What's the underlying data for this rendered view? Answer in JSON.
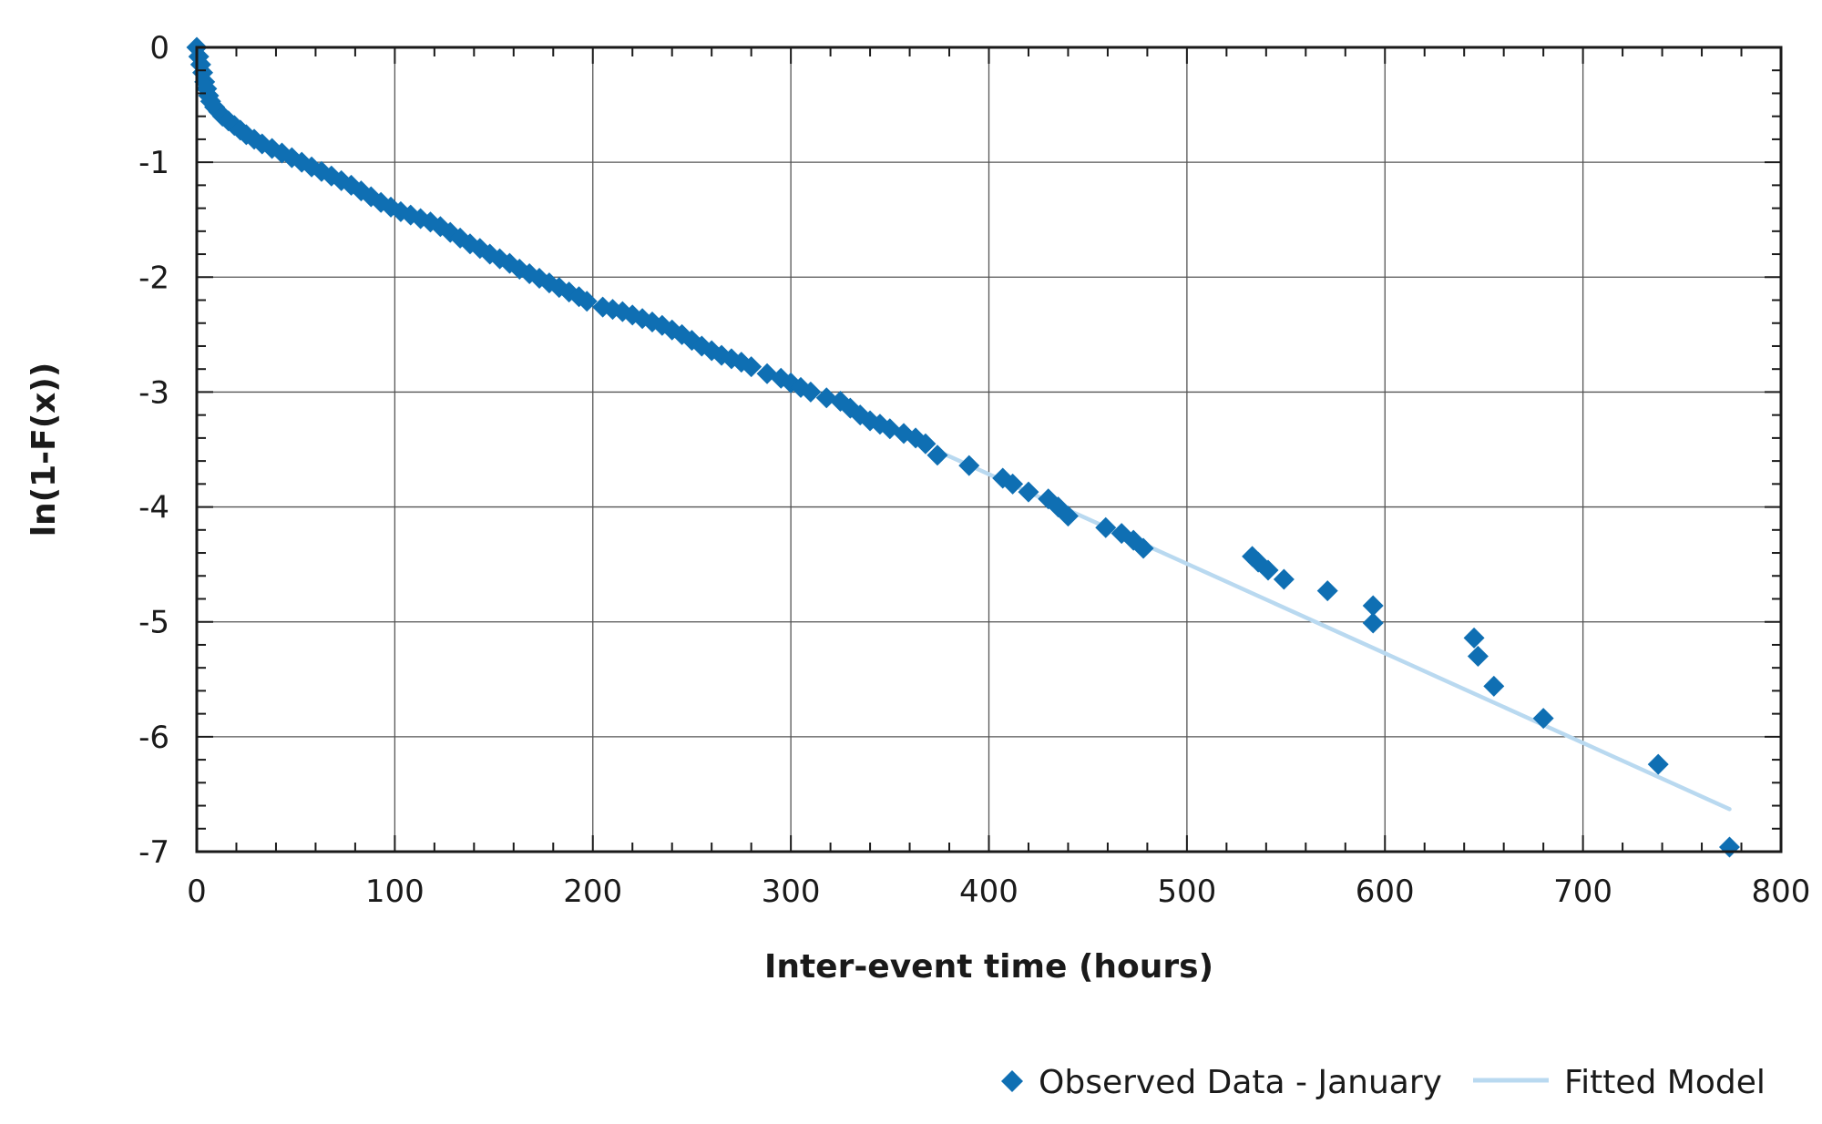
{
  "chart_data": {
    "type": "scatter",
    "title": "",
    "xlabel": "Inter-event time (hours)",
    "ylabel": "ln(1-F(x))",
    "xlim": [
      0,
      800
    ],
    "ylim": [
      -7,
      0
    ],
    "x_ticks": [
      "0",
      "100",
      "200",
      "300",
      "400",
      "500",
      "600",
      "700",
      "800"
    ],
    "y_ticks": [
      "0",
      "-1",
      "-2",
      "-3",
      "-4",
      "-5",
      "-6",
      "-7"
    ],
    "grid": true,
    "legend_position": "bottom-right",
    "series": [
      {
        "name": "Observed Data - January",
        "type": "scatter",
        "marker": "diamond",
        "color": "#0f6fb3",
        "points": [
          [
            0,
            0
          ],
          [
            1,
            -0.08
          ],
          [
            2,
            -0.15
          ],
          [
            3,
            -0.22
          ],
          [
            4,
            -0.3
          ],
          [
            5,
            -0.36
          ],
          [
            6,
            -0.42
          ],
          [
            7,
            -0.47
          ],
          [
            9,
            -0.52
          ],
          [
            11,
            -0.56
          ],
          [
            13,
            -0.6
          ],
          [
            16,
            -0.64
          ],
          [
            19,
            -0.68
          ],
          [
            22,
            -0.72
          ],
          [
            25,
            -0.76
          ],
          [
            29,
            -0.8
          ],
          [
            33,
            -0.84
          ],
          [
            38,
            -0.88
          ],
          [
            43,
            -0.92
          ],
          [
            48,
            -0.96
          ],
          [
            53,
            -1.0
          ],
          [
            58,
            -1.04
          ],
          [
            63,
            -1.08
          ],
          [
            68,
            -1.12
          ],
          [
            73,
            -1.16
          ],
          [
            78,
            -1.2
          ],
          [
            83,
            -1.25
          ],
          [
            88,
            -1.3
          ],
          [
            93,
            -1.35
          ],
          [
            98,
            -1.39
          ],
          [
            103,
            -1.43
          ],
          [
            108,
            -1.46
          ],
          [
            113,
            -1.49
          ],
          [
            118,
            -1.52
          ],
          [
            123,
            -1.56
          ],
          [
            128,
            -1.61
          ],
          [
            133,
            -1.66
          ],
          [
            138,
            -1.71
          ],
          [
            143,
            -1.75
          ],
          [
            148,
            -1.8
          ],
          [
            153,
            -1.84
          ],
          [
            158,
            -1.88
          ],
          [
            163,
            -1.93
          ],
          [
            168,
            -1.97
          ],
          [
            173,
            -2.01
          ],
          [
            178,
            -2.05
          ],
          [
            183,
            -2.09
          ],
          [
            188,
            -2.13
          ],
          [
            193,
            -2.17
          ],
          [
            197,
            -2.21
          ],
          [
            205,
            -2.26
          ],
          [
            210,
            -2.28
          ],
          [
            215,
            -2.3
          ],
          [
            220,
            -2.33
          ],
          [
            225,
            -2.36
          ],
          [
            230,
            -2.39
          ],
          [
            235,
            -2.42
          ],
          [
            240,
            -2.46
          ],
          [
            245,
            -2.5
          ],
          [
            250,
            -2.55
          ],
          [
            255,
            -2.6
          ],
          [
            260,
            -2.64
          ],
          [
            265,
            -2.68
          ],
          [
            270,
            -2.71
          ],
          [
            275,
            -2.74
          ],
          [
            280,
            -2.78
          ],
          [
            288,
            -2.84
          ],
          [
            295,
            -2.88
          ],
          [
            300,
            -2.92
          ],
          [
            305,
            -2.96
          ],
          [
            310,
            -3.0
          ],
          [
            318,
            -3.05
          ],
          [
            325,
            -3.08
          ],
          [
            330,
            -3.14
          ],
          [
            335,
            -3.2
          ],
          [
            340,
            -3.25
          ],
          [
            345,
            -3.28
          ],
          [
            350,
            -3.32
          ],
          [
            357,
            -3.36
          ],
          [
            363,
            -3.4
          ],
          [
            368,
            -3.45
          ],
          [
            374,
            -3.55
          ],
          [
            390,
            -3.64
          ],
          [
            407,
            -3.75
          ],
          [
            412,
            -3.8
          ],
          [
            420,
            -3.87
          ],
          [
            430,
            -3.93
          ],
          [
            435,
            -4.0
          ],
          [
            440,
            -4.08
          ],
          [
            459,
            -4.18
          ],
          [
            467,
            -4.23
          ],
          [
            473,
            -4.29
          ],
          [
            478,
            -4.36
          ],
          [
            533,
            -4.43
          ],
          [
            536,
            -4.48
          ],
          [
            541,
            -4.55
          ],
          [
            549,
            -4.63
          ],
          [
            571,
            -4.73
          ],
          [
            594,
            -4.86
          ],
          [
            594,
            -5.01
          ],
          [
            645,
            -5.14
          ],
          [
            647,
            -5.3
          ],
          [
            655,
            -5.56
          ],
          [
            680,
            -5.84
          ],
          [
            738,
            -6.24
          ],
          [
            774,
            -6.96
          ]
        ]
      },
      {
        "name": "Fitted Model",
        "type": "line",
        "color": "#b9d9f0",
        "points": [
          [
            375,
            -3.52
          ],
          [
            774,
            -6.63
          ]
        ]
      }
    ]
  }
}
